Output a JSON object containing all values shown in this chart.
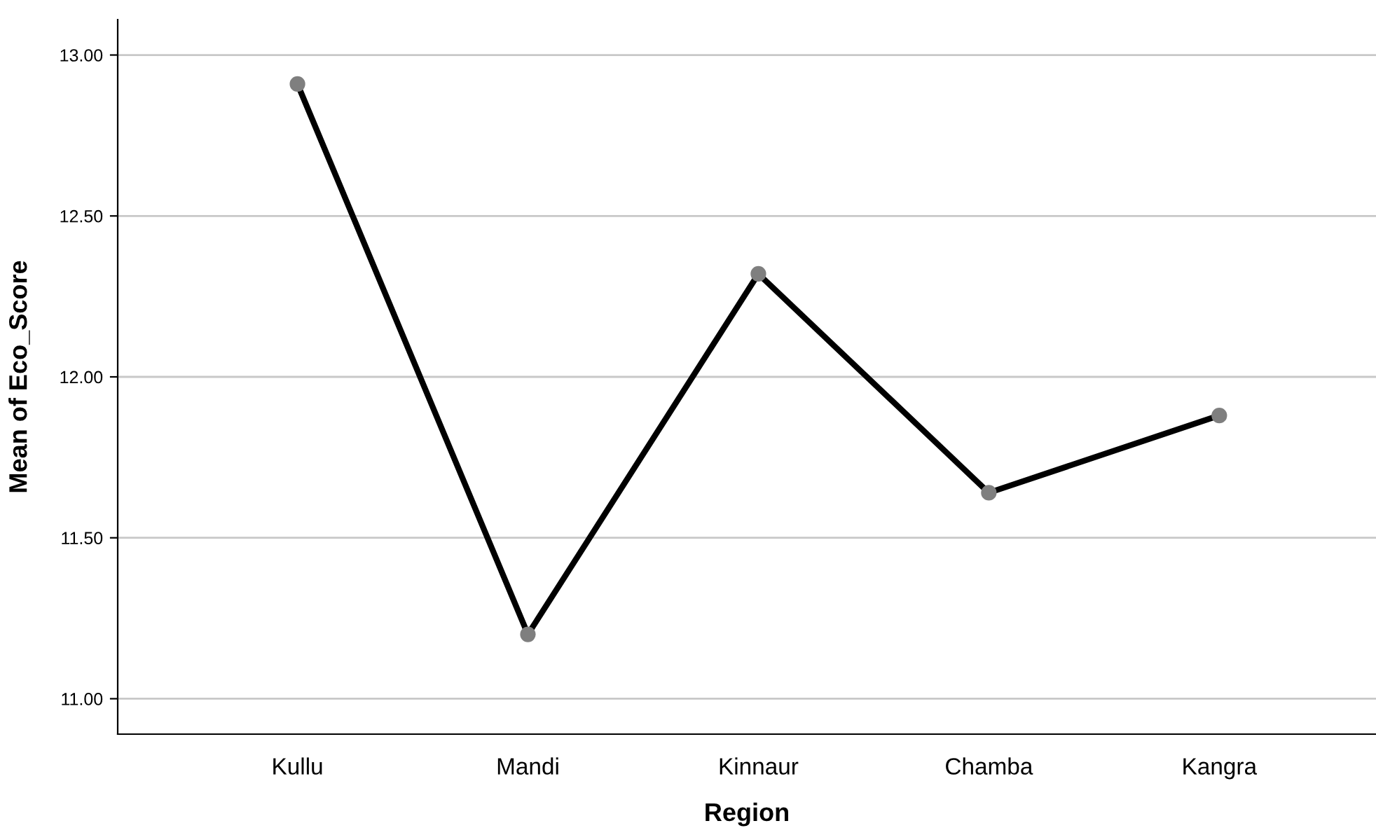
{
  "chart_data": {
    "type": "line",
    "xlabel": "Region",
    "ylabel": "Mean of Eco_Score",
    "categories": [
      "Kullu",
      "Mandi",
      "Kinnaur",
      "Chamba",
      "Kangra"
    ],
    "series": [
      {
        "color": "#000000",
        "values": [
          12.91,
          11.2,
          12.32,
          11.64,
          11.88
        ]
      }
    ],
    "marker": "circle",
    "line_style": "solid",
    "ylim": [
      10.89,
      13.11
    ],
    "yticks": [
      {
        "value": 11,
        "label": "11.00"
      },
      {
        "value": 11.5,
        "label": "11.50"
      },
      {
        "value": 12,
        "label": "12.00"
      },
      {
        "value": 12.5,
        "label": "12.50"
      },
      {
        "value": 13,
        "label": "13.00"
      }
    ],
    "grid": "y"
  }
}
